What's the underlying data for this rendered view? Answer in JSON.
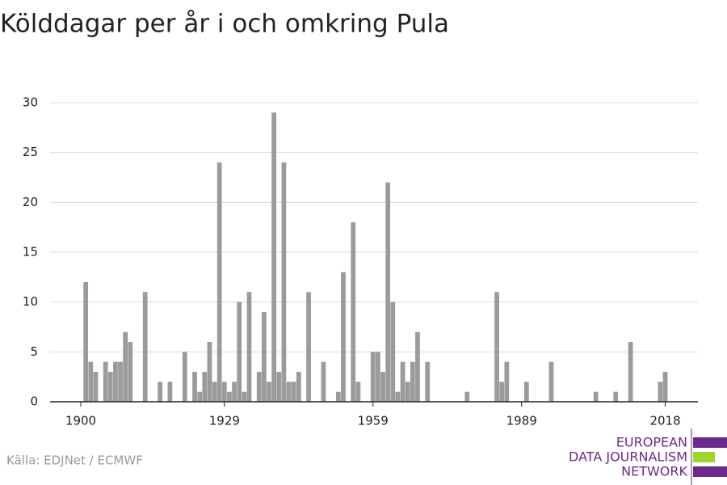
{
  "chart_data": {
    "type": "bar",
    "title": "Kölddagar per år i och omkring Pula",
    "source": "Källa: EDJNet / ECMWF",
    "logo": [
      "EUROPEAN",
      "DATA JOURNALISM",
      "NETWORK"
    ],
    "x": [
      1901,
      1902,
      1903,
      1905,
      1906,
      1907,
      1908,
      1909,
      1910,
      1913,
      1916,
      1918,
      1921,
      1923,
      1924,
      1925,
      1926,
      1927,
      1928,
      1929,
      1930,
      1931,
      1932,
      1933,
      1934,
      1936,
      1937,
      1938,
      1939,
      1940,
      1941,
      1942,
      1943,
      1944,
      1946,
      1949,
      1952,
      1953,
      1955,
      1956,
      1959,
      1960,
      1961,
      1962,
      1963,
      1964,
      1965,
      1966,
      1967,
      1968,
      1970,
      1978,
      1984,
      1985,
      1986,
      1990,
      1995,
      2004,
      2008,
      2011,
      2017,
      2018
    ],
    "values": [
      12,
      4,
      3,
      4,
      3,
      4,
      4,
      7,
      6,
      11,
      2,
      2,
      5,
      3,
      1,
      3,
      6,
      2,
      24,
      2,
      1,
      2,
      10,
      1,
      11,
      3,
      9,
      2,
      29,
      3,
      24,
      2,
      2,
      3,
      11,
      4,
      1,
      13,
      18,
      2,
      5,
      5,
      3,
      22,
      10,
      1,
      4,
      2,
      4,
      7,
      4,
      1,
      11,
      2,
      4,
      2,
      4,
      1,
      1,
      6,
      2,
      3
    ],
    "color": "#9b9b9b",
    "xlim": [
      1893.8,
      2024.6
    ],
    "xticks": [
      1900,
      1929,
      1959,
      1989,
      2018
    ],
    "ylim": [
      0,
      30
    ],
    "yticks": [
      0,
      5,
      10,
      15,
      20,
      25,
      30
    ],
    "grid": true
  }
}
